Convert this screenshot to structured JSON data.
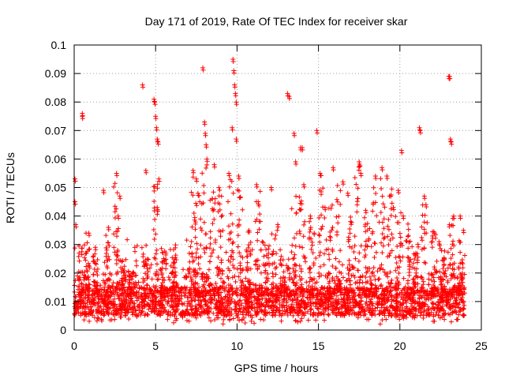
{
  "chart_data": {
    "type": "scatter",
    "title": "Day 171 of 2019, Rate Of TEC Index for receiver skar",
    "xlabel": "GPS time / hours",
    "ylabel": "ROTI / TECUs",
    "xlim": [
      0,
      25
    ],
    "ylim": [
      0,
      0.1
    ],
    "xticks": [
      "0",
      "5",
      "10",
      "15",
      "20",
      "25"
    ],
    "yticks": [
      "0",
      "0.01",
      "0.02",
      "0.03",
      "0.04",
      "0.05",
      "0.06",
      "0.07",
      "0.08",
      "0.09",
      "0.1"
    ],
    "grid": true,
    "marker": "+",
    "color": "#ff0000",
    "base_band": [
      0.005,
      0.015
    ],
    "x_range": [
      0,
      24
    ],
    "series": [
      {
        "points": [
          [
            0.05,
            0.053
          ],
          [
            0.05,
            0.045
          ],
          [
            0.1,
            0.037
          ],
          [
            0.5,
            0.076
          ],
          [
            0.5,
            0.075
          ],
          [
            0.9,
            0.034
          ],
          [
            1.3,
            0.029
          ],
          [
            1.8,
            0.049
          ],
          [
            2.1,
            0.036
          ],
          [
            2.6,
            0.055
          ],
          [
            2.7,
            0.04
          ],
          [
            2.8,
            0.047
          ],
          [
            4.2,
            0.086
          ],
          [
            4.4,
            0.056
          ],
          [
            4.9,
            0.081
          ],
          [
            4.95,
            0.08
          ],
          [
            5.0,
            0.075
          ],
          [
            5.05,
            0.071
          ],
          [
            5.1,
            0.067
          ],
          [
            5.15,
            0.066
          ],
          [
            5.2,
            0.053
          ],
          [
            5.1,
            0.043
          ],
          [
            7.3,
            0.056
          ],
          [
            7.5,
            0.053
          ],
          [
            7.6,
            0.048
          ],
          [
            7.9,
            0.092
          ],
          [
            8.0,
            0.073
          ],
          [
            8.05,
            0.069
          ],
          [
            8.1,
            0.065
          ],
          [
            8.15,
            0.06
          ],
          [
            8.6,
            0.058
          ],
          [
            9.5,
            0.055
          ],
          [
            9.7,
            0.071
          ],
          [
            9.75,
            0.095
          ],
          [
            9.8,
            0.091
          ],
          [
            9.85,
            0.086
          ],
          [
            9.9,
            0.083
          ],
          [
            9.95,
            0.08
          ],
          [
            9.95,
            0.067
          ],
          [
            10.1,
            0.054
          ],
          [
            11.2,
            0.051
          ],
          [
            11.3,
            0.045
          ],
          [
            12.1,
            0.05
          ],
          [
            12.5,
            0.037
          ],
          [
            13.1,
            0.083
          ],
          [
            13.2,
            0.082
          ],
          [
            13.5,
            0.069
          ],
          [
            13.6,
            0.059
          ],
          [
            13.9,
            0.064
          ],
          [
            14.0,
            0.064
          ],
          [
            14.1,
            0.051
          ],
          [
            14.5,
            0.04
          ],
          [
            14.9,
            0.07
          ],
          [
            15.1,
            0.055
          ],
          [
            15.4,
            0.043
          ],
          [
            15.9,
            0.057
          ],
          [
            16.5,
            0.052
          ],
          [
            16.8,
            0.048
          ],
          [
            17.5,
            0.059
          ],
          [
            17.6,
            0.055
          ],
          [
            17.9,
            0.042
          ],
          [
            18.5,
            0.054
          ],
          [
            18.9,
            0.057
          ],
          [
            19.2,
            0.054
          ],
          [
            19.6,
            0.043
          ],
          [
            19.9,
            0.049
          ],
          [
            20.1,
            0.063
          ],
          [
            20.2,
            0.04
          ],
          [
            21.2,
            0.071
          ],
          [
            21.25,
            0.07
          ],
          [
            21.5,
            0.047
          ],
          [
            21.6,
            0.044
          ],
          [
            22.0,
            0.033
          ],
          [
            22.4,
            0.031
          ],
          [
            23.0,
            0.089
          ],
          [
            23.05,
            0.089
          ],
          [
            23.1,
            0.067
          ],
          [
            23.15,
            0.066
          ],
          [
            23.3,
            0.04
          ],
          [
            23.7,
            0.04
          ],
          [
            23.9,
            0.035
          ]
        ]
      }
    ],
    "bursts": [
      [
        0.4,
        0.03
      ],
      [
        0.8,
        0.034
      ],
      [
        1.3,
        0.028
      ],
      [
        2.0,
        0.035
      ],
      [
        2.6,
        0.054
      ],
      [
        3.0,
        0.025
      ],
      [
        3.5,
        0.022
      ],
      [
        4.4,
        0.03
      ],
      [
        5.0,
        0.052
      ],
      [
        5.5,
        0.028
      ],
      [
        6.1,
        0.03
      ],
      [
        7.3,
        0.055
      ],
      [
        7.6,
        0.05
      ],
      [
        8.0,
        0.06
      ],
      [
        8.5,
        0.052
      ],
      [
        9.0,
        0.05
      ],
      [
        9.6,
        0.054
      ],
      [
        10.2,
        0.05
      ],
      [
        10.7,
        0.035
      ],
      [
        11.3,
        0.05
      ],
      [
        11.8,
        0.03
      ],
      [
        12.3,
        0.035
      ],
      [
        12.8,
        0.026
      ],
      [
        13.5,
        0.05
      ],
      [
        14.0,
        0.048
      ],
      [
        14.6,
        0.042
      ],
      [
        15.2,
        0.055
      ],
      [
        15.7,
        0.045
      ],
      [
        16.2,
        0.052
      ],
      [
        16.9,
        0.043
      ],
      [
        17.4,
        0.058
      ],
      [
        18.0,
        0.04
      ],
      [
        18.4,
        0.05
      ],
      [
        18.9,
        0.056
      ],
      [
        19.4,
        0.05
      ],
      [
        19.9,
        0.045
      ],
      [
        20.5,
        0.038
      ],
      [
        21.0,
        0.03
      ],
      [
        21.5,
        0.046
      ],
      [
        22.1,
        0.035
      ],
      [
        22.6,
        0.03
      ],
      [
        23.2,
        0.04
      ],
      [
        23.7,
        0.035
      ]
    ]
  }
}
